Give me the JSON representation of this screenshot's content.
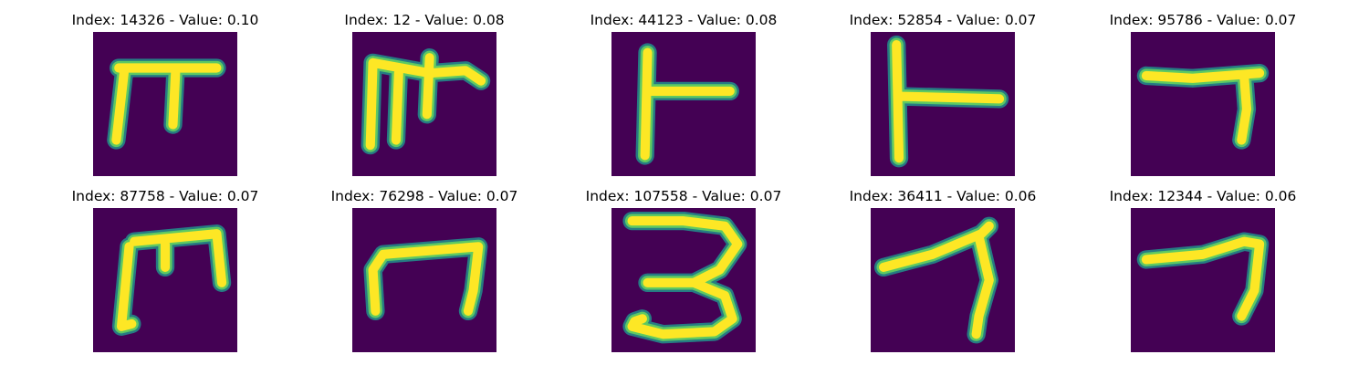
{
  "colors": {
    "background": "#440154",
    "stroke_core": "#fde725",
    "stroke_mid": "#5ec962",
    "stroke_edge": "#21918c"
  },
  "panels": [
    {
      "index": "14326",
      "value": "0.10",
      "title": "Index: 14326 - Value: 0.10"
    },
    {
      "index": "12",
      "value": "0.08",
      "title": "Index: 12 - Value: 0.08"
    },
    {
      "index": "44123",
      "value": "0.08",
      "title": "Index: 44123 - Value: 0.08"
    },
    {
      "index": "52854",
      "value": "0.07",
      "title": "Index: 52854 - Value: 0.07"
    },
    {
      "index": "95786",
      "value": "0.07",
      "title": "Index: 95786 - Value: 0.07"
    },
    {
      "index": "87758",
      "value": "0.07",
      "title": "Index: 87758 - Value: 0.07"
    },
    {
      "index": "76298",
      "value": "0.07",
      "title": "Index: 76298 - Value: 0.07"
    },
    {
      "index": "107558",
      "value": "0.07",
      "title": "Index: 107558 - Value: 0.07"
    },
    {
      "index": "36411",
      "value": "0.06",
      "title": "Index: 36411 - Value: 0.06"
    },
    {
      "index": "12344",
      "value": "0.06",
      "title": "Index: 12344 - Value: 0.06"
    }
  ]
}
